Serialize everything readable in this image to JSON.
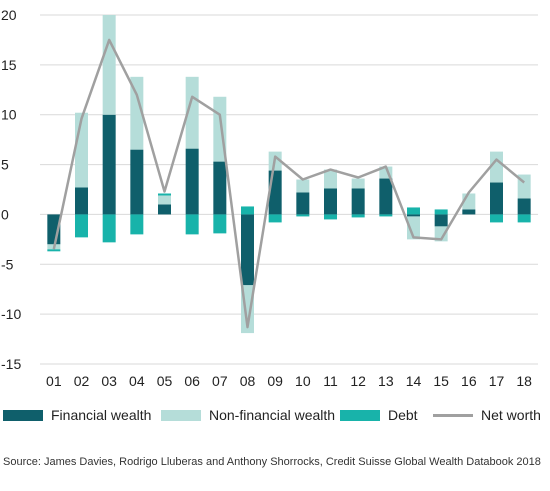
{
  "chart_data": {
    "type": "bar",
    "stacked": true,
    "categories": [
      "01",
      "02",
      "03",
      "04",
      "05",
      "06",
      "07",
      "08",
      "09",
      "10",
      "11",
      "12",
      "13",
      "14",
      "15",
      "16",
      "17",
      "18"
    ],
    "series": [
      {
        "name": "Financial wealth",
        "type": "bar",
        "color": "#0f5f6b",
        "values": [
          -3,
          2.7,
          10,
          6.5,
          1,
          6.6,
          5.3,
          -7.1,
          4.4,
          2.2,
          2.6,
          2.6,
          3.6,
          -0.2,
          -1.2,
          0.5,
          3.2,
          1.6
        ]
      },
      {
        "name": "Non-financial wealth",
        "type": "bar",
        "color": "#b5ddd9",
        "values": [
          -0.5,
          7.5,
          10,
          7.3,
          0.9,
          7.2,
          6.5,
          -4.8,
          1.9,
          1.3,
          1.9,
          1.0,
          1.2,
          -2.3,
          -1.5,
          1.6,
          3.1,
          2.4
        ]
      },
      {
        "name": "Debt",
        "type": "bar",
        "color": "#18b3aa",
        "values": [
          -0.2,
          -2.3,
          -2.8,
          -2.0,
          0.2,
          -2.0,
          -1.9,
          0.8,
          -0.8,
          -0.2,
          -0.5,
          -0.3,
          -0.2,
          0.7,
          0.5,
          0.0,
          -0.8,
          -0.8
        ]
      },
      {
        "name": "Net worth",
        "type": "line",
        "color": "#a0a0a0",
        "values": [
          -3.5,
          9.6,
          17.5,
          12.0,
          2.3,
          11.8,
          10.0,
          -11.3,
          5.8,
          3.5,
          4.5,
          3.7,
          4.8,
          -2.3,
          -2.5,
          2.2,
          5.5,
          3.2
        ]
      }
    ],
    "ylim": [
      -15,
      20
    ],
    "yticks": [
      "20",
      "15",
      "10",
      "5",
      "0",
      "-5",
      "-10",
      "-15"
    ],
    "grid": "horizontal",
    "legend": "bottom",
    "title": "",
    "xlabel": "",
    "ylabel": ""
  },
  "legend": {
    "financial": "Financial wealth",
    "nonfinancial": "Non-financial wealth",
    "debt": "Debt",
    "networth": "Net worth"
  },
  "source": "Source: James Davies, Rodrigo Lluberas and Anthony Shorrocks, Credit Suisse Global Wealth Databook 2018"
}
